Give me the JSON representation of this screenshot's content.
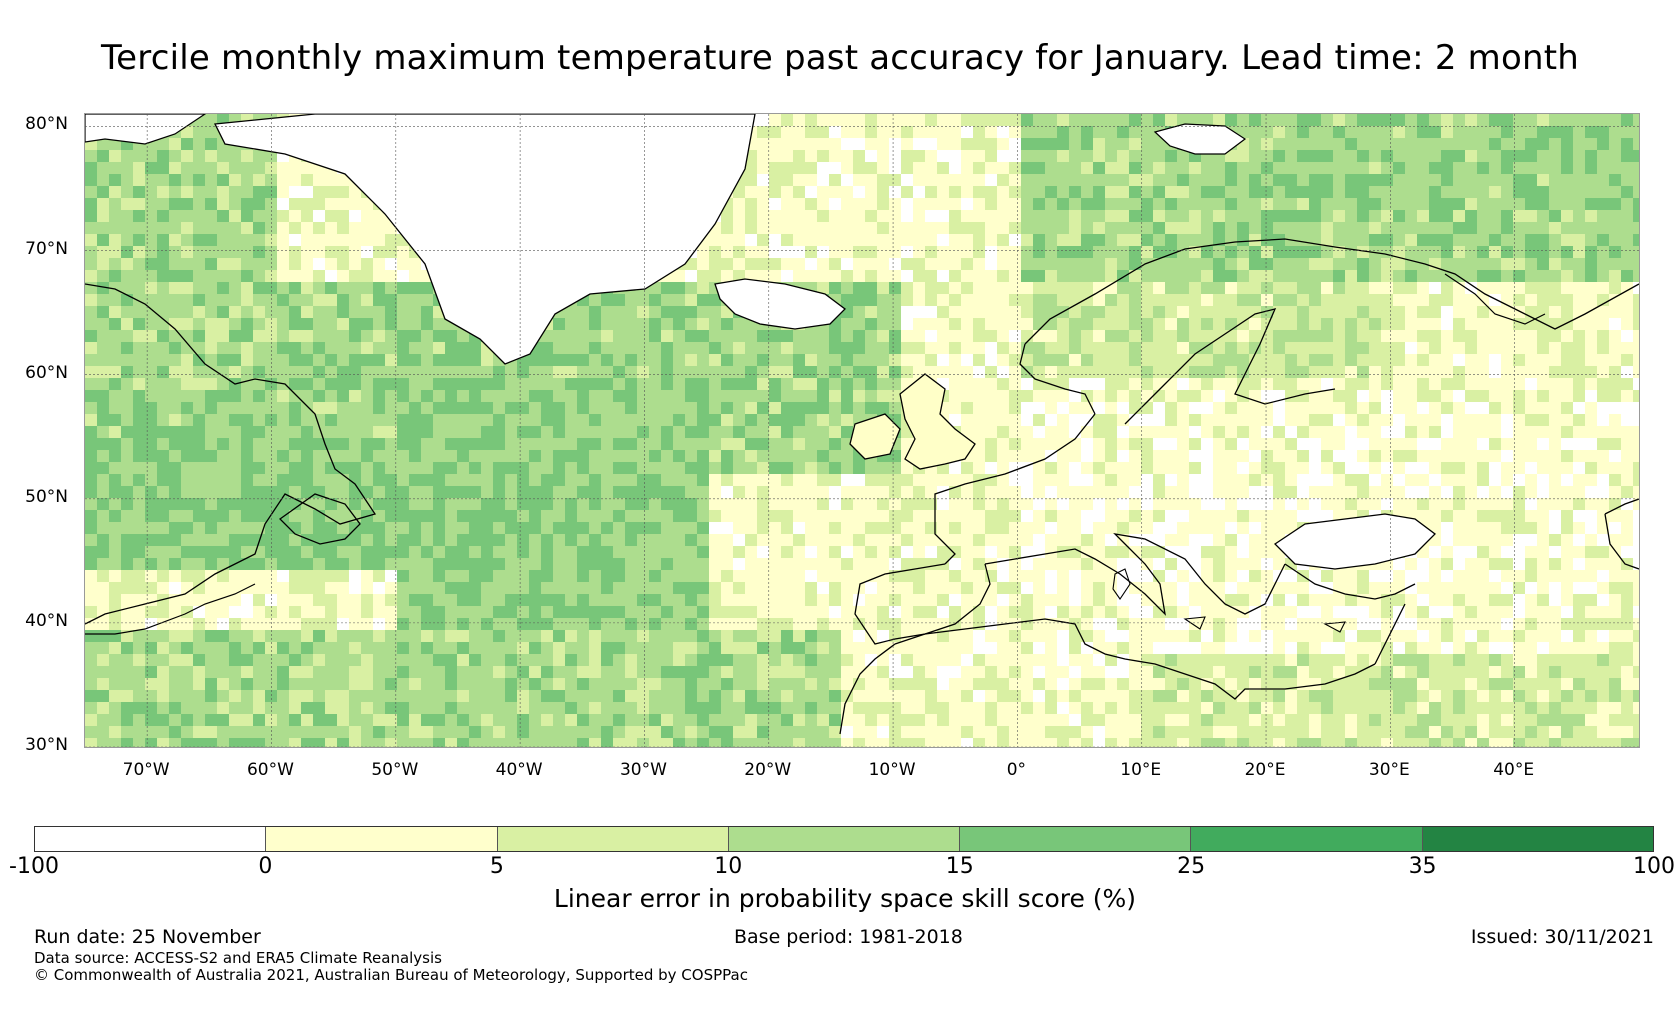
{
  "title": "Tercile monthly maximum temperature past accuracy for January. Lead time: 2 month",
  "map": {
    "region": "North Atlantic and Europe",
    "lon_range": [
      -75,
      50
    ],
    "lat_range": [
      30,
      81
    ],
    "lat_labels": [
      "80°N",
      "70°N",
      "60°N",
      "50°N",
      "40°N",
      "30°N"
    ],
    "lat_values": [
      80,
      70,
      60,
      50,
      40,
      30
    ],
    "lon_labels": [
      "70°W",
      "60°W",
      "50°W",
      "40°W",
      "30°W",
      "20°W",
      "10°W",
      "0°",
      "10°E",
      "20°E",
      "30°E",
      "40°E"
    ],
    "lon_values": [
      -70,
      -60,
      -50,
      -40,
      -30,
      -20,
      -10,
      0,
      10,
      20,
      30,
      40
    ],
    "land_color": "#ffffff",
    "coastline_color": "#000000",
    "grid_color": "#555555"
  },
  "colorbar": {
    "ticks": [
      "-100",
      "0",
      "5",
      "10",
      "15",
      "25",
      "35",
      "100"
    ],
    "colors": [
      "#ffffff",
      "#ffffcc",
      "#d9f0a3",
      "#addd8e",
      "#78c679",
      "#41ab5d",
      "#238443"
    ],
    "label": "Linear error in probability space skill score (%)"
  },
  "footer": {
    "run_date": "Run date: 25 November",
    "base_period": "Base period: 1981-2018",
    "issued": "Issued: 30/11/2021",
    "data_source": "Data source: ACCESS-S2 and ERA5 Climate Reanalysis",
    "copyright": "© Commonwealth of Australia 2021, Australian Bureau of Meteorology, Supported by COSPPac"
  }
}
